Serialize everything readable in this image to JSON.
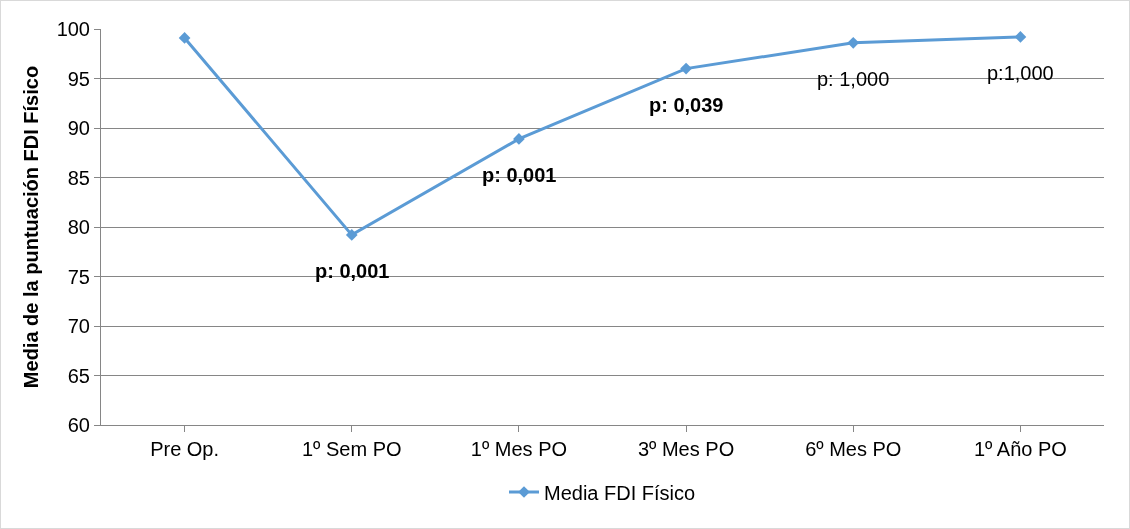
{
  "chart_data": {
    "type": "line",
    "ylabel": "Media de la puntuación FDI Físico",
    "categories": [
      "Pre Op.",
      "1º Sem PO",
      "1º Mes PO",
      "3º Mes PO",
      "6º Mes PO",
      "1º Año PO"
    ],
    "series": [
      {
        "name": "Media FDI Físico",
        "color": "#5b9bd5",
        "values": [
          99.1,
          79.2,
          88.9,
          96.0,
          98.6,
          99.2
        ]
      }
    ],
    "ylim": [
      60,
      100
    ],
    "yticks": [
      60,
      65,
      70,
      75,
      80,
      85,
      90,
      95,
      100
    ],
    "grid": "y",
    "legend": "bottom",
    "marker": "diamond",
    "line_style": "solid",
    "annotations": [
      {
        "text": "p: 0,001",
        "x": "1º Sem PO",
        "y": 79.2
      },
      {
        "text": "p: 0,001",
        "x": "1º Mes PO",
        "y": 88.9
      },
      {
        "text": "p: 0,039",
        "x": "3º Mes PO",
        "y": 96.0
      },
      {
        "text": "p: 1,000",
        "x": "6º Mes PO",
        "y": 98.6
      },
      {
        "text": "p:1,000",
        "x": "1º Año PO",
        "y": 99.2
      }
    ]
  }
}
